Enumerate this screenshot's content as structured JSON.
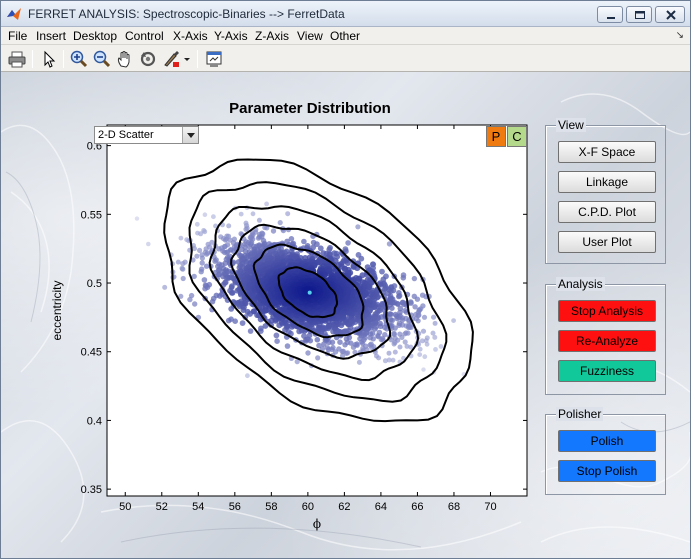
{
  "window": {
    "title": "FERRET ANALYSIS: Spectroscopic-Binaries --> FerretData"
  },
  "menubar": {
    "items": [
      "File",
      "Insert",
      "Desktop",
      "Control",
      "X-Axis",
      "Y-Axis",
      "Z-Axis",
      "View",
      "Other"
    ]
  },
  "toolbar": {
    "tools": [
      "print-icon",
      "pointer-icon",
      "zoom-in-icon",
      "zoom-out-icon",
      "pan-hand-icon",
      "rotate-icon",
      "data-cursor-brush-icon",
      "dropdown-arrow-icon",
      "edit-plot-icon"
    ]
  },
  "plot": {
    "title": "Parameter Distribution",
    "plot_type_selected": "2-D Scatter",
    "p_button": "P",
    "c_button": "C"
  },
  "chart_data": {
    "type": "scatter",
    "title": "Parameter Distribution",
    "xlabel": "ϕ",
    "ylabel": "eccentricity",
    "xlim": [
      49,
      72
    ],
    "ylim": [
      0.345,
      0.615
    ],
    "xticks": [
      50,
      52,
      54,
      56,
      58,
      60,
      62,
      64,
      66,
      68,
      70
    ],
    "yticks": [
      0.35,
      0.4,
      0.45,
      0.5,
      0.55,
      0.6
    ],
    "ytick_labels": [
      "0.35",
      "0.4",
      "0.45",
      "0.5",
      "0.55",
      "0.6"
    ],
    "grid": false,
    "point_cloud": {
      "center": [
        60,
        0.494
      ],
      "description_colors": {
        "dense": "#101a8c",
        "sparse": "#c8cce8"
      },
      "tilt": "negative correlation"
    },
    "peak_marker": [
      60.1,
      0.493
    ],
    "contours": [
      {
        "level": 1,
        "cx": 60.0,
        "cy": 0.493,
        "rx": 1.7,
        "ry": 0.018
      },
      {
        "level": 2,
        "cx": 60.1,
        "cy": 0.494,
        "rx": 3.2,
        "ry": 0.032
      },
      {
        "level": 3,
        "cx": 60.2,
        "cy": 0.494,
        "rx": 4.6,
        "ry": 0.046
      },
      {
        "level": 4,
        "cx": 60.3,
        "cy": 0.494,
        "rx": 6.0,
        "ry": 0.061
      },
      {
        "level": 5,
        "cx": 60.4,
        "cy": 0.494,
        "rx": 7.5,
        "ry": 0.078
      },
      {
        "level": 6,
        "cx": 60.5,
        "cy": 0.494,
        "rx": 9.0,
        "ry": 0.095
      }
    ]
  },
  "view_panel": {
    "label": "View",
    "buttons": [
      "X-F Space",
      "Linkage",
      "C.P.D. Plot",
      "User Plot"
    ]
  },
  "analysis_panel": {
    "label": "Analysis",
    "buttons": [
      {
        "label": "Stop Analysis",
        "color": "#ff1010"
      },
      {
        "label": "Re-Analyze",
        "color": "#ff1010"
      },
      {
        "label": "Fuzziness",
        "color": "#10c89a"
      }
    ]
  },
  "polisher_panel": {
    "label": "Polisher",
    "buttons": [
      {
        "label": "Polish",
        "color": "#1478ff"
      },
      {
        "label": "Stop Polish",
        "color": "#1478ff"
      }
    ]
  }
}
